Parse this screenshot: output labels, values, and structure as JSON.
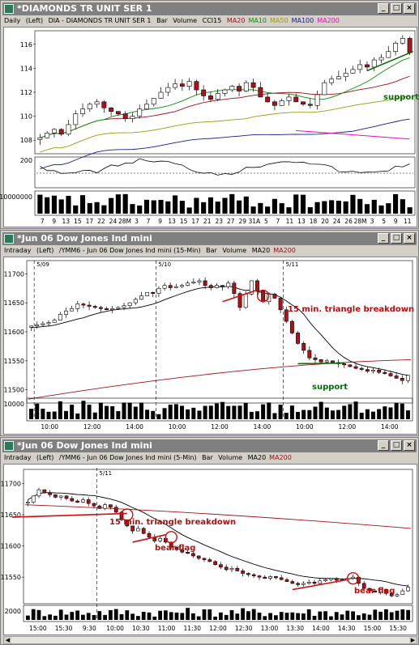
{
  "windows": [
    {
      "title": "*DIAMONDS TR UNIT SER 1",
      "info": {
        "period": "Daily",
        "axis": "(Left)",
        "desc": "DIA - DIAMONDS TR UNIT SER 1",
        "type": "Bar",
        "vol": "Volume",
        "ind": "CCI15"
      },
      "legend": [
        {
          "label": "MA20",
          "color": "#a0101a"
        },
        {
          "label": "MA10",
          "color": "#0a8a0a"
        },
        {
          "label": "MA50",
          "color": "#9a9a10"
        },
        {
          "label": "MA100",
          "color": "#1a1a8a"
        },
        {
          "label": "MA200",
          "color": "#e010c0"
        }
      ],
      "price_ticks": [
        "116",
        "114",
        "112",
        "110",
        "108"
      ],
      "cci_tick": "200",
      "vol_tick": "10000000",
      "x_ticks": [
        "7",
        "9",
        "13",
        "15",
        "17",
        "22",
        "24",
        "28M",
        "3",
        "7",
        "9",
        "13",
        "15",
        "17",
        "21",
        "23",
        "27",
        "29",
        "31A",
        "5",
        "7",
        "11",
        "13",
        "18",
        "20",
        "24",
        "26",
        "28M",
        "3",
        "5",
        "9",
        "11"
      ],
      "annotations": [
        {
          "text": "support",
          "color": "#0a6a0a"
        }
      ]
    },
    {
      "title": "*Jun 06  Dow Jones Ind mini",
      "info": {
        "period": "Intraday",
        "axis": "(Left)",
        "desc": "/YMM6 - Jun 06  Dow Jones Ind mini  (15-Min)",
        "type": "Bar",
        "vol": "Volume",
        "ind": ""
      },
      "legend": [
        {
          "label": "MA20",
          "color": "#000000"
        },
        {
          "label": "MA200",
          "color": "#a0101a"
        }
      ],
      "price_ticks": [
        "11700",
        "11650",
        "11600",
        "11550",
        "11500"
      ],
      "vol_tick": "10000",
      "date_marks": [
        "5/09",
        "5/10",
        "5/11"
      ],
      "x_ticks": [
        "10:00",
        "12:00",
        "14:00",
        "10:00",
        "12:00",
        "14:00",
        "10:00",
        "12:00",
        "14:00"
      ],
      "annotations": [
        {
          "text": "15 min. triangle breakdown",
          "color": "#b01010"
        },
        {
          "text": "support",
          "color": "#0a6a0a"
        }
      ]
    },
    {
      "title": "*Jun 06  Dow Jones Ind mini",
      "info": {
        "period": "Intraday",
        "axis": "(Left)",
        "desc": "/YMM6 - Jun 06  Dow Jones Ind mini  (5-Min)",
        "type": "Bar",
        "vol": "Volume",
        "ind": ""
      },
      "legend": [
        {
          "label": "MA20",
          "color": "#000000"
        },
        {
          "label": "MA200",
          "color": "#a0101a"
        }
      ],
      "price_ticks": [
        "11700",
        "11650",
        "11600",
        "11550"
      ],
      "vol_tick": "2000",
      "date_marks": [
        "5/11"
      ],
      "x_ticks": [
        "15:00",
        "15:30",
        "9:30",
        "10:00",
        "10:30",
        "11:00",
        "11:30",
        "12:00",
        "12:30",
        "13:00",
        "13:30",
        "14:00",
        "14:30",
        "15:00",
        "15:30"
      ],
      "annotations": [
        {
          "text": "15 min. triangle breakdown",
          "color": "#b01010"
        },
        {
          "text": "bear flag",
          "color": "#b01010"
        },
        {
          "text": "bear flag",
          "color": "#b01010"
        }
      ]
    }
  ],
  "chart_data": [
    {
      "type": "candlestick",
      "title": "DIA - DIAMONDS TR UNIT SER 1",
      "ylim": [
        107,
        117
      ],
      "closes": [
        108.2,
        108.6,
        108.9,
        108.5,
        109.3,
        110.2,
        110.6,
        111.0,
        111.2,
        110.7,
        110.4,
        110.2,
        109.8,
        110.0,
        110.6,
        111.0,
        111.5,
        112.0,
        112.4,
        112.7,
        112.5,
        112.9,
        112.2,
        111.7,
        111.4,
        111.9,
        112.2,
        112.5,
        112.1,
        112.8,
        112.4,
        111.6,
        111.2,
        110.9,
        111.3,
        111.6,
        111.2,
        111.0,
        110.9,
        111.8,
        112.8,
        113.1,
        113.3,
        113.6,
        113.9,
        114.3,
        114.1,
        114.7,
        114.9,
        115.4,
        116.1,
        116.5,
        115.3
      ],
      "ma_labels": [
        "MA20",
        "MA10",
        "MA50",
        "MA100",
        "MA200"
      ]
    },
    {
      "type": "candlestick",
      "title": "/YMM6 - Jun 06 Dow Jones Ind mini (15-Min)",
      "ylim": [
        11480,
        11720
      ],
      "closes": [
        11610,
        11612,
        11614,
        11616,
        11620,
        11630,
        11636,
        11640,
        11648,
        11646,
        11644,
        11642,
        11640,
        11638,
        11640,
        11642,
        11645,
        11650,
        11656,
        11662,
        11668,
        11666,
        11675,
        11680,
        11676,
        11678,
        11680,
        11684,
        11686,
        11688,
        11680,
        11676,
        11680,
        11678,
        11684,
        11666,
        11642,
        11665,
        11688,
        11670,
        11652,
        11665,
        11658,
        11638,
        11618,
        11598,
        11580,
        11568,
        11555,
        11552,
        11548,
        11550,
        11547,
        11545,
        11543,
        11540,
        11537,
        11535,
        11532,
        11534,
        11530,
        11528,
        11524,
        11520,
        11516,
        11525
      ],
      "support": 11545,
      "ma_labels": [
        "MA20",
        "MA200"
      ]
    },
    {
      "type": "candlestick",
      "title": "/YMM6 - Jun 06 Dow Jones Ind mini (5-Min)",
      "ylim": [
        11510,
        11720
      ],
      "closes": [
        11670,
        11680,
        11690,
        11685,
        11682,
        11678,
        11680,
        11676,
        11672,
        11670,
        11674,
        11668,
        11664,
        11660,
        11666,
        11662,
        11654,
        11642,
        11632,
        11624,
        11628,
        11620,
        11614,
        11608,
        11612,
        11606,
        11598,
        11594,
        11590,
        11588,
        11584,
        11580,
        11578,
        11575,
        11570,
        11566,
        11562,
        11564,
        11560,
        11556,
        11554,
        11552,
        11550,
        11548,
        11551,
        11549,
        11546,
        11543,
        11540,
        11538,
        11540,
        11542,
        11540,
        11544,
        11546,
        11548,
        11545,
        11546,
        11548,
        11550,
        11540,
        11532,
        11528,
        11526,
        11530,
        11524,
        11520,
        11522,
        11528,
        11534
      ],
      "ma_labels": [
        "MA20",
        "MA200"
      ]
    }
  ]
}
